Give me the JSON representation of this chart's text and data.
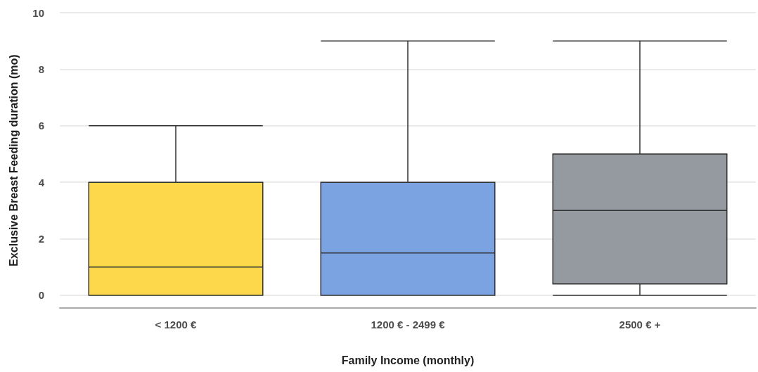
{
  "chart_data": {
    "type": "box",
    "xlabel": "Family Income (monthly)",
    "ylabel": "Exclusive Breast Feeding duration (mo)",
    "categories": [
      "< 1200 €",
      "1200 € - 2499 €",
      "2500 € +"
    ],
    "colors": [
      "#fcd84a",
      "#7ba3e2",
      "#959aa0"
    ],
    "boxes": [
      {
        "low": 0,
        "q1": 0,
        "median": 1,
        "q3": 4,
        "high": 6
      },
      {
        "low": 0,
        "q1": 0,
        "median": 1.5,
        "q3": 4,
        "high": 9
      },
      {
        "low": 0,
        "q1": 0.4,
        "median": 3,
        "q3": 5,
        "high": 9
      }
    ],
    "ylim": [
      -0.45,
      10
    ],
    "yticks": [
      0,
      2,
      4,
      6,
      8,
      10
    ],
    "grid": "y"
  }
}
